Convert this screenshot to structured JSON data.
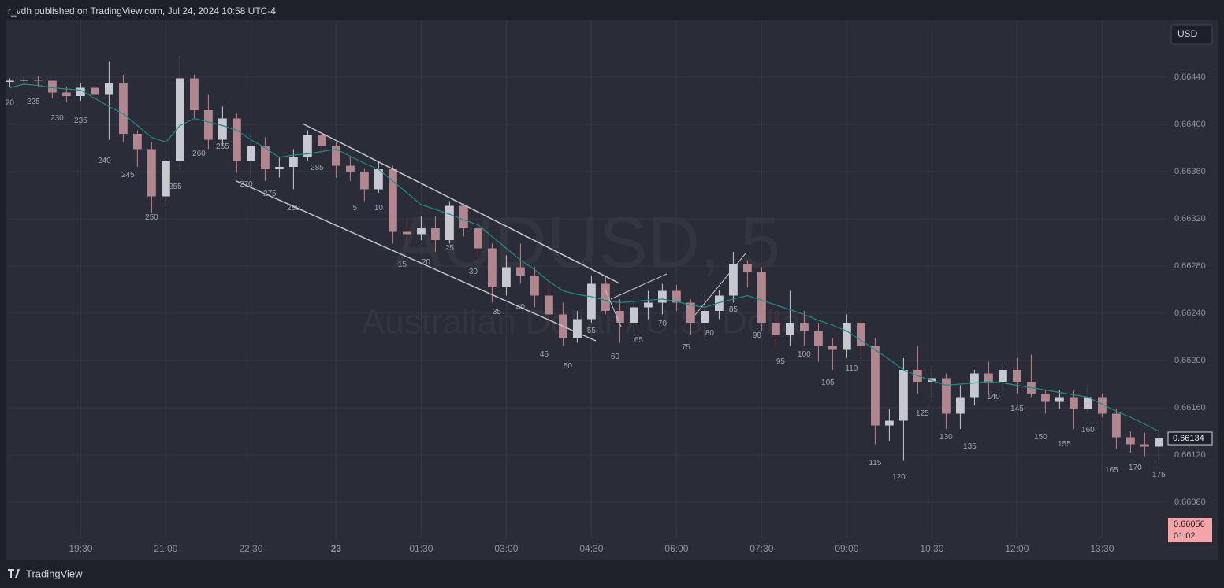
{
  "header": {
    "text": "r_vdh published on TradingView.com, Jul 24, 2024 10:58 UTC-4"
  },
  "currency_button": "USD",
  "footer": "TradingView",
  "chart_data": {
    "type": "candlestick",
    "watermark": {
      "symbol": "AUDUSD, 5",
      "description": "Australian Dollar / U.S. Dollar"
    },
    "x": [
      "18:15",
      "18:30",
      "18:45",
      "19:00",
      "19:15",
      "19:30",
      "19:45",
      "20:00",
      "20:15",
      "20:30",
      "20:45",
      "21:00",
      "21:15",
      "21:30",
      "21:45",
      "22:00",
      "22:15",
      "22:30",
      "22:45",
      "23:00",
      "23:15",
      "23:30",
      "23:45",
      "00:00",
      "00:15",
      "00:30",
      "00:45",
      "01:00",
      "01:15",
      "01:30",
      "01:45",
      "02:00",
      "02:15",
      "02:30",
      "02:45",
      "03:00",
      "03:15",
      "03:30",
      "03:45",
      "04:00",
      "04:15",
      "04:30",
      "04:45",
      "05:00",
      "05:15",
      "05:30",
      "05:45",
      "06:00",
      "06:15",
      "06:30",
      "06:45",
      "07:00",
      "07:15",
      "07:30",
      "07:45",
      "08:00",
      "08:15",
      "08:30",
      "08:45",
      "09:00",
      "09:15",
      "09:30",
      "09:45",
      "10:00",
      "10:15",
      "10:30",
      "10:45",
      "11:00",
      "11:15",
      "11:30",
      "11:45",
      "12:00",
      "12:15",
      "12:30",
      "12:45",
      "13:00",
      "13:15",
      "13:30",
      "13:45",
      "14:00",
      "14:15",
      "14:30"
    ],
    "open": [
      0.66436,
      0.66437,
      0.66438,
      0.66437,
      0.66427,
      0.66424,
      0.66431,
      0.66425,
      0.66435,
      0.66392,
      0.66379,
      0.66339,
      0.66369,
      0.66439,
      0.66412,
      0.66387,
      0.66405,
      0.66369,
      0.66382,
      0.66362,
      0.66364,
      0.66372,
      0.66391,
      0.66382,
      0.66365,
      0.6636,
      0.66345,
      0.66362,
      0.66309,
      0.66307,
      0.66312,
      0.66302,
      0.66331,
      0.66312,
      0.66295,
      0.66262,
      0.66279,
      0.66272,
      0.66255,
      0.66239,
      0.66219,
      0.66235,
      0.66265,
      0.66242,
      0.66232,
      0.66245,
      0.66249,
      0.66259,
      0.66249,
      0.66232,
      0.66242,
      0.66255,
      0.66282,
      0.66275,
      0.66232,
      0.66222,
      0.66232,
      0.66225,
      0.66212,
      0.66209,
      0.66232,
      0.66212,
      0.66145,
      0.66149,
      0.66192,
      0.66182,
      0.66185,
      0.66155,
      0.66169,
      0.66189,
      0.66182,
      0.66192,
      0.66182,
      0.66172,
      0.66165,
      0.66169,
      0.66159,
      0.66169,
      0.66155,
      0.66135,
      0.66129,
      0.66127
    ],
    "high": [
      0.66439,
      0.6644,
      0.66441,
      0.66437,
      0.66432,
      0.66435,
      0.66433,
      0.66453,
      0.66442,
      0.66395,
      0.66385,
      0.66372,
      0.6646,
      0.66442,
      0.66425,
      0.66415,
      0.66409,
      0.66392,
      0.66389,
      0.66372,
      0.66379,
      0.66395,
      0.66393,
      0.66385,
      0.66372,
      0.66362,
      0.66369,
      0.66365,
      0.66319,
      0.66322,
      0.66322,
      0.66335,
      0.66333,
      0.66315,
      0.66299,
      0.66289,
      0.66299,
      0.66279,
      0.66265,
      0.66249,
      0.66242,
      0.66272,
      0.66272,
      0.66252,
      0.66252,
      0.66259,
      0.66265,
      0.66264,
      0.66252,
      0.66255,
      0.6626,
      0.66292,
      0.66285,
      0.66279,
      0.66242,
      0.66259,
      0.66242,
      0.66232,
      0.66219,
      0.66239,
      0.66235,
      0.66219,
      0.66159,
      0.66202,
      0.66212,
      0.66195,
      0.66189,
      0.66179,
      0.66192,
      0.66199,
      0.66197,
      0.66202,
      0.66205,
      0.66175,
      0.66175,
      0.66175,
      0.66179,
      0.66172,
      0.66159,
      0.6614,
      0.66139,
      0.6614
    ],
    "low": [
      0.66432,
      0.66435,
      0.66432,
      0.66422,
      0.66419,
      0.6642,
      0.6642,
      0.66387,
      0.66385,
      0.66364,
      0.66325,
      0.66332,
      0.66362,
      0.66405,
      0.66379,
      0.66382,
      0.66359,
      0.66355,
      0.66352,
      0.66355,
      0.66345,
      0.66369,
      0.66375,
      0.66355,
      0.66352,
      0.66335,
      0.66342,
      0.66299,
      0.66299,
      0.66302,
      0.66292,
      0.66299,
      0.66305,
      0.66285,
      0.66249,
      0.66255,
      0.66265,
      0.66245,
      0.66229,
      0.66212,
      0.66215,
      0.66232,
      0.66239,
      0.66215,
      0.66222,
      0.66235,
      0.66239,
      0.66242,
      0.66222,
      0.66219,
      0.66235,
      0.66249,
      0.66262,
      0.66225,
      0.66212,
      0.66212,
      0.66212,
      0.66199,
      0.66192,
      0.66202,
      0.66202,
      0.66129,
      0.66132,
      0.66115,
      0.66172,
      0.66169,
      0.66142,
      0.66142,
      0.66162,
      0.66172,
      0.66175,
      0.66172,
      0.66169,
      0.66155,
      0.66159,
      0.66142,
      0.66155,
      0.66152,
      0.66125,
      0.66122,
      0.66119,
      0.66113
    ],
    "close": [
      0.66437,
      0.66438,
      0.66437,
      0.66427,
      0.66424,
      0.66431,
      0.66425,
      0.66435,
      0.66392,
      0.66379,
      0.66339,
      0.66369,
      0.66439,
      0.66412,
      0.66387,
      0.66405,
      0.66369,
      0.66382,
      0.66362,
      0.66364,
      0.66372,
      0.66391,
      0.66382,
      0.66365,
      0.6636,
      0.66345,
      0.66362,
      0.66309,
      0.66307,
      0.66312,
      0.66302,
      0.66331,
      0.66312,
      0.66295,
      0.66262,
      0.66279,
      0.66272,
      0.66255,
      0.66239,
      0.66219,
      0.66235,
      0.66265,
      0.66242,
      0.66232,
      0.66245,
      0.66249,
      0.66259,
      0.66249,
      0.66232,
      0.66242,
      0.66255,
      0.66282,
      0.66275,
      0.66232,
      0.66222,
      0.66232,
      0.66225,
      0.66212,
      0.66209,
      0.66232,
      0.66212,
      0.66145,
      0.66149,
      0.66192,
      0.66182,
      0.66185,
      0.66155,
      0.66169,
      0.66189,
      0.66182,
      0.66192,
      0.66182,
      0.66172,
      0.66165,
      0.66169,
      0.66159,
      0.66169,
      0.66155,
      0.66135,
      0.66129,
      0.66127,
      0.66134
    ],
    "up_color": "#c8c9d0",
    "down_color": "#b3868d",
    "ma": {
      "color": "#1e8c82",
      "values": [
        0.66431,
        0.66434,
        0.66433,
        0.66431,
        0.6643,
        0.66429,
        0.66422,
        0.66415,
        0.66409,
        0.66399,
        0.66389,
        0.66385,
        0.66399,
        0.66405,
        0.66402,
        0.66399,
        0.66395,
        0.66387,
        0.6638,
        0.66372,
        0.66374,
        0.66375,
        0.66377,
        0.66379,
        0.66373,
        0.66367,
        0.66362,
        0.66352,
        0.66342,
        0.66332,
        0.66328,
        0.66324,
        0.66319,
        0.66315,
        0.66305,
        0.66295,
        0.66285,
        0.66277,
        0.66267,
        0.66259,
        0.66256,
        0.66254,
        0.66251,
        0.66249,
        0.6625,
        0.66251,
        0.66252,
        0.6625,
        0.66247,
        0.66245,
        0.66249,
        0.66252,
        0.66255,
        0.66251,
        0.66247,
        0.66243,
        0.66239,
        0.66234,
        0.6623,
        0.66225,
        0.66217,
        0.66209,
        0.66201,
        0.66192,
        0.66187,
        0.66183,
        0.66179,
        0.6618,
        0.66181,
        0.66182,
        0.66181,
        0.66179,
        0.66177,
        0.66175,
        0.66173,
        0.66171,
        0.66169,
        0.66163,
        0.66157,
        0.66152,
        0.66146,
        0.6614
      ]
    },
    "bar_labels": [
      {
        "text": "20",
        "time": "18:20",
        "price": 0.66418
      },
      {
        "text": "225",
        "time": "18:45",
        "price": 0.66419
      },
      {
        "text": "230",
        "time": "19:10",
        "price": 0.66405
      },
      {
        "text": "235",
        "time": "19:35",
        "price": 0.66403
      },
      {
        "text": "240",
        "time": "20:00",
        "price": 0.66369
      },
      {
        "text": "245",
        "time": "20:25",
        "price": 0.66357
      },
      {
        "text": "250",
        "time": "20:50",
        "price": 0.66321
      },
      {
        "text": "255",
        "time": "21:15",
        "price": 0.66347
      },
      {
        "text": "260",
        "time": "21:40",
        "price": 0.66375
      },
      {
        "text": "265",
        "time": "22:05",
        "price": 0.66381
      },
      {
        "text": "270",
        "time": "22:30",
        "price": 0.66349
      },
      {
        "text": "275",
        "time": "22:55",
        "price": 0.66341
      },
      {
        "text": "280",
        "time": "23:20",
        "price": 0.66329
      },
      {
        "text": "285",
        "time": "23:45",
        "price": 0.66363
      },
      {
        "text": "5",
        "time": "00:25",
        "price": 0.66329
      },
      {
        "text": "10",
        "time": "00:50",
        "price": 0.66329
      },
      {
        "text": "15",
        "time": "01:15",
        "price": 0.66281
      },
      {
        "text": "20",
        "time": "01:40",
        "price": 0.66283
      },
      {
        "text": "25",
        "time": "02:05",
        "price": 0.66295
      },
      {
        "text": "30",
        "time": "02:30",
        "price": 0.66275
      },
      {
        "text": "35",
        "time": "02:55",
        "price": 0.66241
      },
      {
        "text": "40",
        "time": "03:20",
        "price": 0.66245
      },
      {
        "text": "45",
        "time": "03:45",
        "price": 0.66205
      },
      {
        "text": "50",
        "time": "04:10",
        "price": 0.66195
      },
      {
        "text": "55",
        "time": "04:35",
        "price": 0.66225
      },
      {
        "text": "60",
        "time": "05:00",
        "price": 0.66203
      },
      {
        "text": "65",
        "time": "05:25",
        "price": 0.66217
      },
      {
        "text": "70",
        "time": "05:50",
        "price": 0.66231
      },
      {
        "text": "75",
        "time": "06:15",
        "price": 0.66211
      },
      {
        "text": "80",
        "time": "06:40",
        "price": 0.66223
      },
      {
        "text": "85",
        "time": "07:05",
        "price": 0.66243
      },
      {
        "text": "90",
        "time": "07:30",
        "price": 0.66221
      },
      {
        "text": "95",
        "time": "07:55",
        "price": 0.66199
      },
      {
        "text": "100",
        "time": "08:20",
        "price": 0.66205
      },
      {
        "text": "105",
        "time": "08:45",
        "price": 0.66181
      },
      {
        "text": "110",
        "time": "09:10",
        "price": 0.66193
      },
      {
        "text": "115",
        "time": "09:35",
        "price": 0.66113
      },
      {
        "text": "120",
        "time": "10:00",
        "price": 0.66101
      },
      {
        "text": "125",
        "time": "10:25",
        "price": 0.66155
      },
      {
        "text": "130",
        "time": "10:50",
        "price": 0.66135
      },
      {
        "text": "135",
        "time": "11:15",
        "price": 0.66127
      },
      {
        "text": "140",
        "time": "11:40",
        "price": 0.66169
      },
      {
        "text": "145",
        "time": "12:05",
        "price": 0.66159
      },
      {
        "text": "150",
        "time": "12:30",
        "price": 0.66135
      },
      {
        "text": "155",
        "time": "12:55",
        "price": 0.66129
      },
      {
        "text": "160",
        "time": "13:20",
        "price": 0.66141
      },
      {
        "text": "165",
        "time": "13:45",
        "price": 0.66107
      },
      {
        "text": "170",
        "time": "14:10",
        "price": 0.66109
      },
      {
        "text": "175",
        "time": "14:35",
        "price": 0.66103
      }
    ],
    "xlim": [
      "18:13",
      "14:38"
    ],
    "xticks": [
      "19:30",
      "21:00",
      "22:30",
      {
        "value": "00:00",
        "label": "23"
      },
      "01:30",
      "03:00",
      "04:30",
      "06:00",
      "07:30",
      "09:00",
      "10:30",
      "12:00",
      "13:30"
    ],
    "ylim": [
      0.6605,
      0.66488
    ],
    "yticks": [
      {
        "value": 0.6644,
        "label": "0.66440"
      },
      {
        "value": 0.664,
        "label": "0.66400"
      },
      {
        "value": 0.6636,
        "label": "0.66360"
      },
      {
        "value": 0.6632,
        "label": "0.66320"
      },
      {
        "value": 0.6628,
        "label": "0.66280"
      },
      {
        "value": 0.6624,
        "label": "0.66240"
      },
      {
        "value": 0.662,
        "label": "0.66200"
      },
      {
        "value": 0.6616,
        "label": "0.66160"
      },
      {
        "value": 0.6612,
        "label": "0.66120"
      },
      {
        "value": 0.6608,
        "label": "0.66080"
      }
    ],
    "grid": true,
    "last_close": {
      "value": 0.66134,
      "label": "0.66134"
    },
    "current_price": {
      "value": 0.66056,
      "label": "0.66056",
      "countdown": "01:02"
    }
  }
}
